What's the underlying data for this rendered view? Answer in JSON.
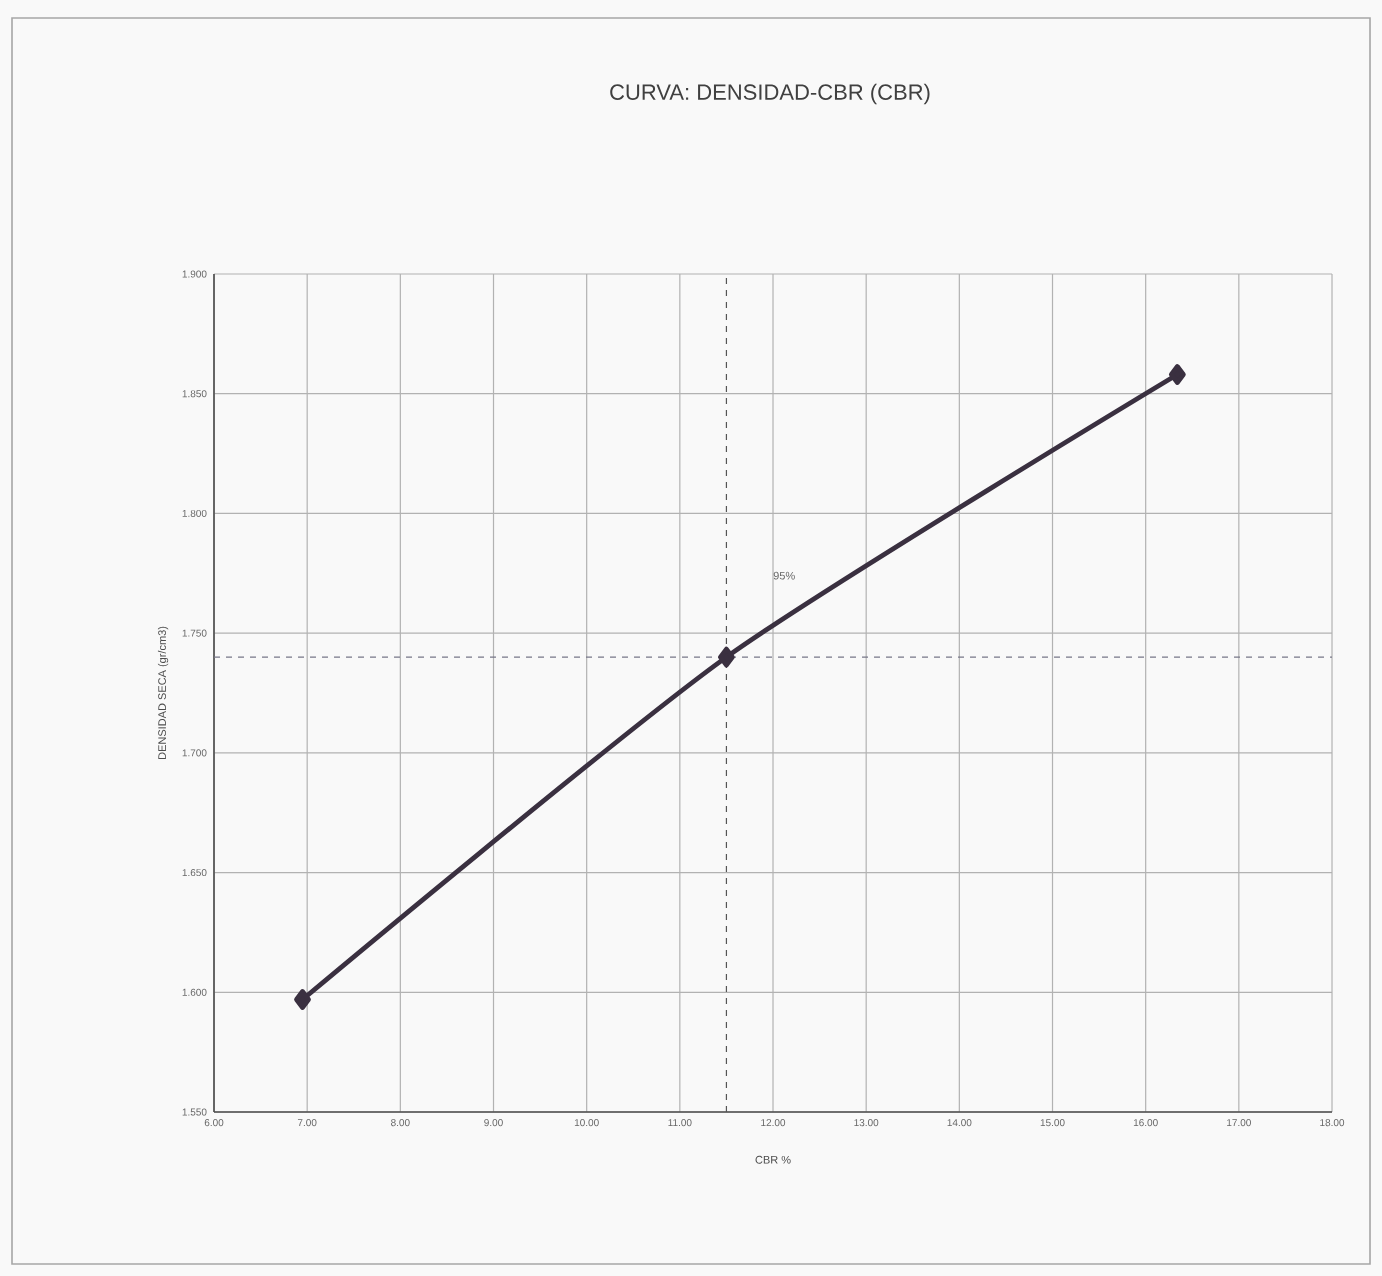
{
  "chart_data": {
    "type": "line",
    "title": "CURVA:  DENSIDAD-CBR (CBR)",
    "xlabel": "CBR %",
    "ylabel": "DENSIDAD SECA (gr/cm3)",
    "x": [
      6.95,
      11.5,
      16.34
    ],
    "series": [
      {
        "color": "#3a3040",
        "values": [
          1.597,
          1.74,
          1.858
        ]
      }
    ],
    "marker": "diamond",
    "line_style": "solid",
    "grid": true,
    "xlim": [
      6,
      18
    ],
    "ylim": [
      1.55,
      1.9
    ],
    "xticks": [
      {
        "value": 6,
        "label": "6.00"
      },
      {
        "value": 7,
        "label": "7.00"
      },
      {
        "value": 8,
        "label": "8.00"
      },
      {
        "value": 9,
        "label": "9.00"
      },
      {
        "value": 10,
        "label": "10.00"
      },
      {
        "value": 11,
        "label": "11.00"
      },
      {
        "value": 12,
        "label": "12.00"
      },
      {
        "value": 13,
        "label": "13.00"
      },
      {
        "value": 14,
        "label": "14.00"
      },
      {
        "value": 15,
        "label": "15.00"
      },
      {
        "value": 16,
        "label": "16.00"
      },
      {
        "value": 17,
        "label": "17.00"
      },
      {
        "value": 18,
        "label": "18.00"
      }
    ],
    "yticks": [
      {
        "value": 1.55,
        "label": "1.550"
      },
      {
        "value": 1.6,
        "label": "1.600"
      },
      {
        "value": 1.65,
        "label": "1.650"
      },
      {
        "value": 1.7,
        "label": "1.700"
      },
      {
        "value": 1.75,
        "label": "1.750"
      },
      {
        "value": 1.8,
        "label": "1.800"
      },
      {
        "value": 1.85,
        "label": "1.850"
      },
      {
        "value": 1.9,
        "label": "1.900"
      }
    ],
    "ref_lines": [
      {
        "axis": "x",
        "value": 11.5,
        "line_style": "dashed",
        "color": "#555555"
      },
      {
        "axis": "y",
        "value": 1.74,
        "line_style": "dashed",
        "color": "#777788"
      }
    ],
    "annotations": [
      "95%"
    ]
  }
}
